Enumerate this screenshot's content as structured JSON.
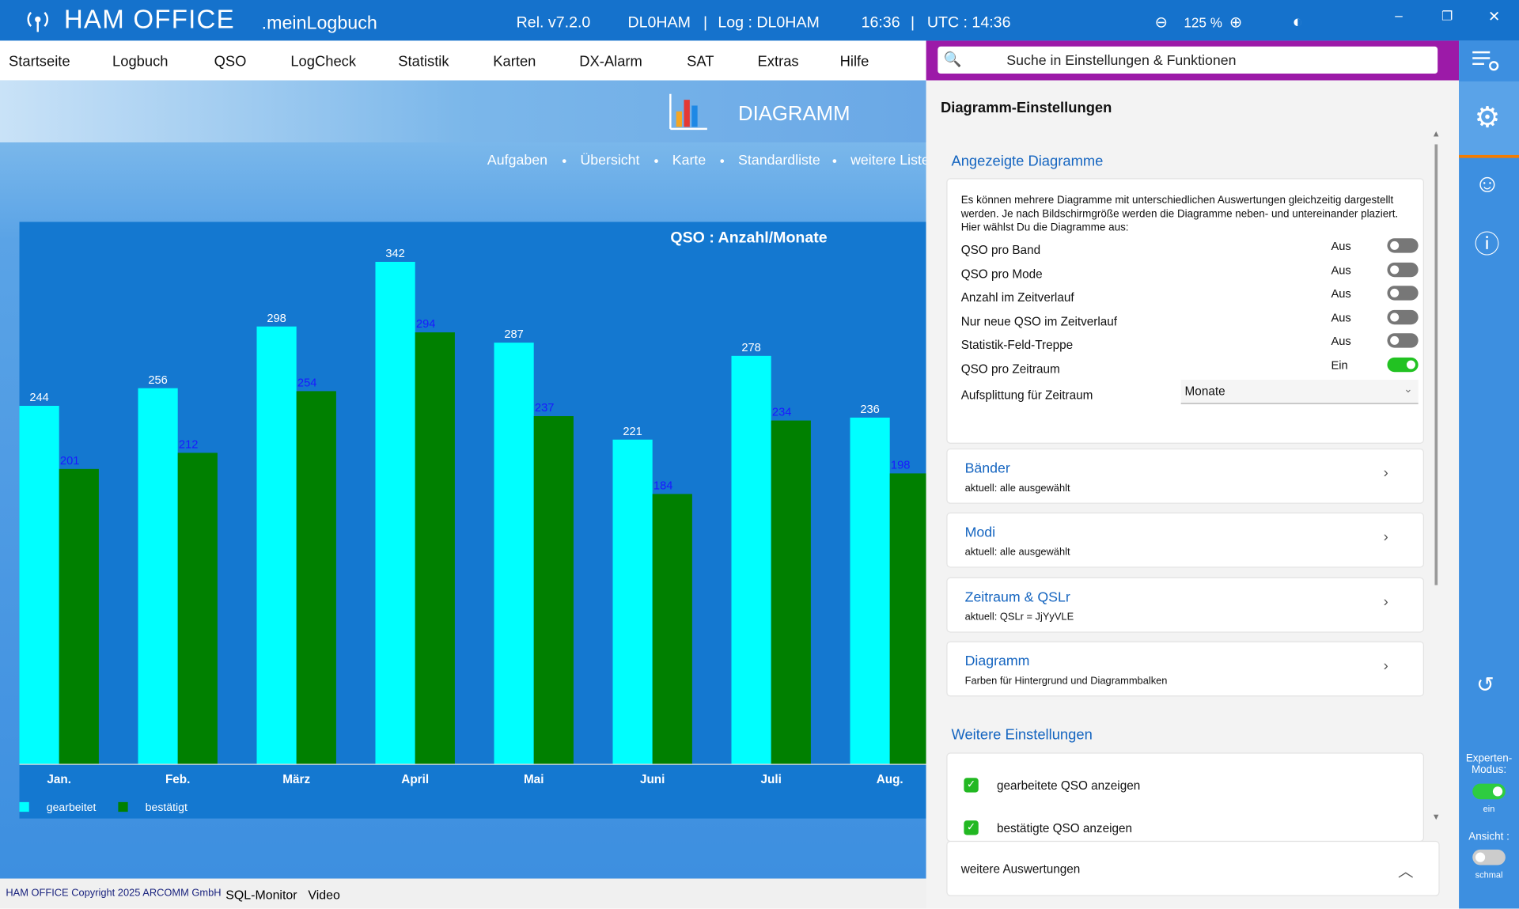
{
  "header": {
    "app": "HAM OFFICE",
    "app_sub": ".meinLogbuch",
    "release": "Rel. v7.2.0",
    "call": "DL0HAM",
    "log": "Log : DL0HAM",
    "time": "16:36",
    "utc": "UTC : 14:36",
    "zoom": "125 %"
  },
  "menu": [
    "Startseite",
    "Logbuch",
    "QSO",
    "LogCheck",
    "Statistik",
    "Karten",
    "DX-Alarm",
    "SAT",
    "Extras",
    "Hilfe"
  ],
  "page_title": "DIAGRAMM",
  "subnav": [
    "Aufgaben",
    "Übersicht",
    "Karte",
    "Standardliste",
    "weitere Liste"
  ],
  "search": "Suche in Einstellungen & Funktionen",
  "settings": {
    "title": "Diagramm-Einstellungen",
    "section1": "Angezeigte Diagramme",
    "description": "Es können mehrere Diagramme mit unterschiedlichen Auswertungen gleichzeitig dargestellt werden. Je nach Bildschirmgröße werden die Diagramme neben- und untereinander plaziert. Hier wählst Du die Diagramme aus:",
    "toggles": [
      {
        "label": "QSO pro Band",
        "state": "Aus",
        "on": false
      },
      {
        "label": "QSO pro Mode",
        "state": "Aus",
        "on": false
      },
      {
        "label": "Anzahl im Zeitverlauf",
        "state": "Aus",
        "on": false
      },
      {
        "label": "Nur neue QSO im Zeitverlauf",
        "state": "Aus",
        "on": false
      },
      {
        "label": "Statistik-Feld-Treppe",
        "state": "Aus",
        "on": false
      },
      {
        "label": "QSO pro Zeitraum",
        "state": "Ein",
        "on": true
      }
    ],
    "split_label": "Aufsplittung für Zeitraum",
    "split_value": "Monate",
    "cards": [
      {
        "title": "Bänder",
        "sub": "aktuell: alle ausgewählt"
      },
      {
        "title": "Modi",
        "sub": "aktuell: alle ausgewählt"
      },
      {
        "title": "Zeitraum & QSLr",
        "sub": "aktuell: QSLr = JjYyVLE"
      },
      {
        "title": "Diagramm",
        "sub": "Farben für Hintergrund und Diagrammbalken"
      }
    ],
    "section2": "Weitere Einstellungen",
    "checks": [
      "gearbeitete QSO anzeigen",
      "bestätigte QSO anzeigen"
    ],
    "more": "weitere Auswertungen"
  },
  "sidebar": {
    "expert": "Experten-Modus:",
    "expert_state": "ein",
    "view": "Ansicht :",
    "view_state": "schmal"
  },
  "footer": {
    "copyright": "HAM OFFICE Copyright 2025 ARCOMM GmbH",
    "links": [
      "SQL-Monitor",
      "Video"
    ]
  },
  "chart_data": {
    "type": "bar",
    "title": "QSO : Anzahl/Monate",
    "categories": [
      "Jan.",
      "Feb.",
      "März",
      "April",
      "Mai",
      "Juni",
      "Juli",
      "Aug."
    ],
    "series": [
      {
        "name": "gearbeitet",
        "color": "#00ffff",
        "values": [
          244,
          256,
          298,
          342,
          287,
          221,
          278,
          236
        ]
      },
      {
        "name": "bestätigt",
        "color": "#008000",
        "values": [
          201,
          212,
          254,
          294,
          237,
          184,
          234,
          198
        ]
      }
    ],
    "ylim": [
      0,
      360
    ]
  }
}
